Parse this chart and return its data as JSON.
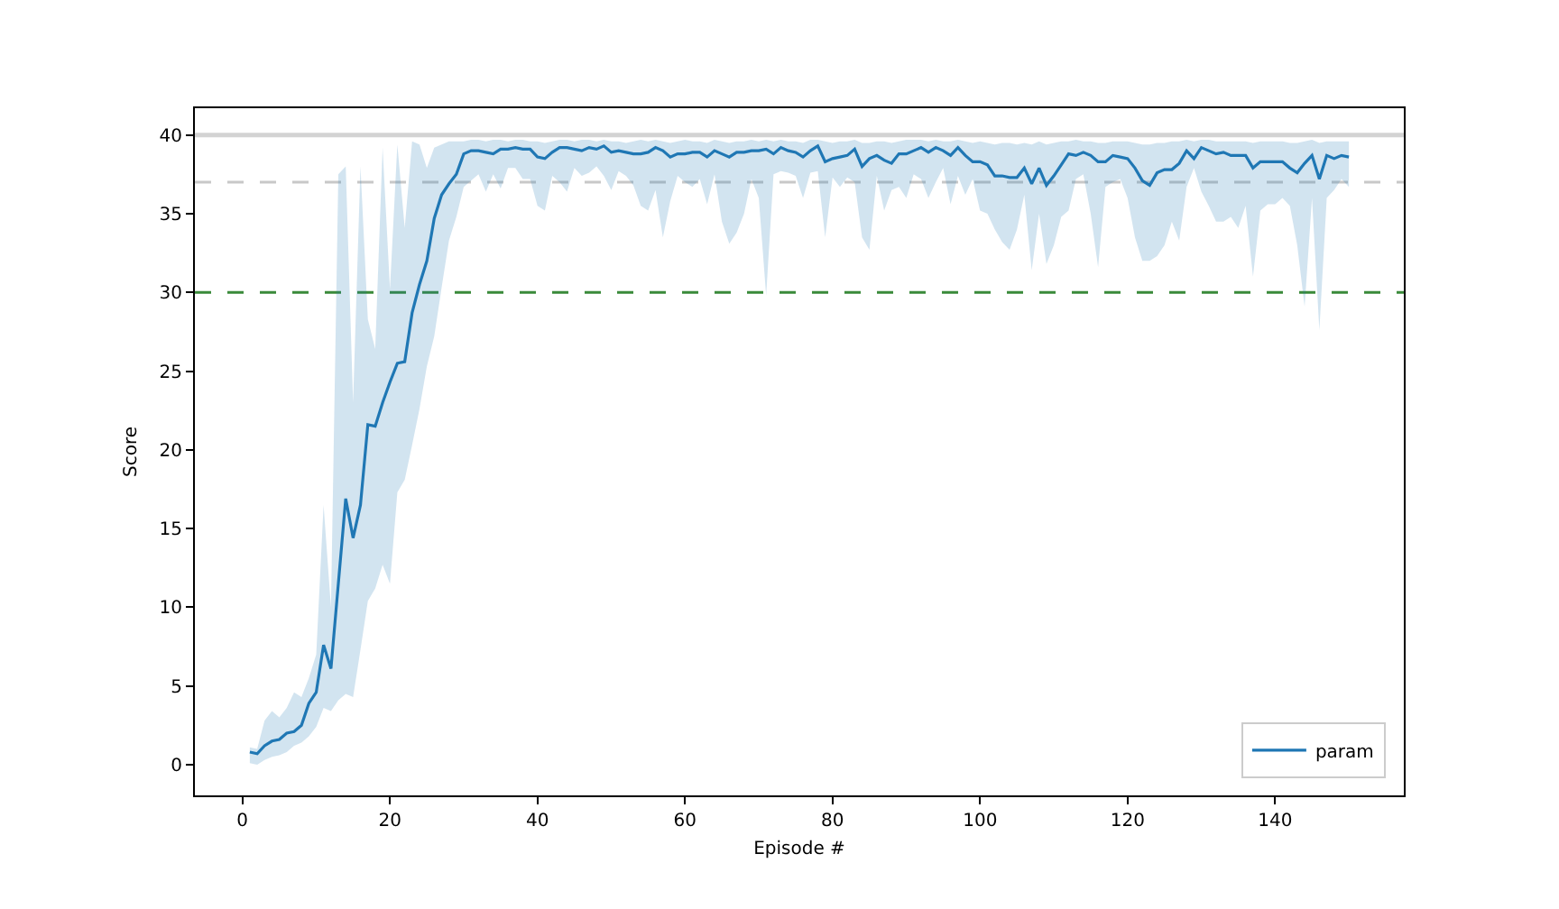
{
  "chart_data": {
    "type": "line",
    "xlabel": "Episode #",
    "ylabel": "Score",
    "x": [
      1,
      2,
      3,
      4,
      5,
      6,
      7,
      8,
      9,
      10,
      11,
      12,
      13,
      14,
      15,
      16,
      17,
      18,
      19,
      20,
      21,
      22,
      23,
      24,
      25,
      26,
      27,
      28,
      29,
      30,
      31,
      32,
      33,
      34,
      35,
      36,
      37,
      38,
      39,
      40,
      41,
      42,
      43,
      44,
      45,
      46,
      47,
      48,
      49,
      50,
      51,
      52,
      53,
      54,
      55,
      56,
      57,
      58,
      59,
      60,
      61,
      62,
      63,
      64,
      65,
      66,
      67,
      68,
      69,
      70,
      71,
      72,
      73,
      74,
      75,
      76,
      77,
      78,
      79,
      80,
      81,
      82,
      83,
      84,
      85,
      86,
      87,
      88,
      89,
      90,
      91,
      92,
      93,
      94,
      95,
      96,
      97,
      98,
      99,
      100,
      101,
      102,
      103,
      104,
      105,
      106,
      107,
      108,
      109,
      110,
      111,
      112,
      113,
      114,
      115,
      116,
      117,
      118,
      119,
      120,
      121,
      122,
      123,
      124,
      125,
      126,
      127,
      128,
      129,
      130,
      131,
      132,
      133,
      134,
      135,
      136,
      137,
      138,
      139,
      140,
      141,
      142,
      143,
      144,
      145,
      146,
      147,
      148,
      149,
      150
    ],
    "series": [
      {
        "name": "param",
        "color": "#1f77b4",
        "values": [
          0.8,
          0.7,
          1.2,
          1.5,
          1.6,
          2.0,
          2.1,
          2.5,
          3.9,
          4.6,
          7.6,
          6.1,
          11.5,
          16.9,
          14.4,
          16.5,
          21.6,
          21.5,
          23.0,
          24.3,
          25.5,
          25.6,
          28.7,
          30.5,
          32.0,
          34.7,
          36.2,
          36.9,
          37.5,
          38.8,
          39.0,
          39.0,
          38.9,
          38.8,
          39.1,
          39.1,
          39.2,
          39.1,
          39.1,
          38.6,
          38.5,
          38.9,
          39.2,
          39.2,
          39.1,
          39.0,
          39.2,
          39.1,
          39.3,
          38.9,
          39.0,
          38.9,
          38.8,
          38.8,
          38.9,
          39.2,
          39.0,
          38.6,
          38.8,
          38.8,
          38.9,
          38.9,
          38.6,
          39.0,
          38.8,
          38.6,
          38.9,
          38.9,
          39.0,
          39.0,
          39.1,
          38.8,
          39.2,
          39.0,
          38.9,
          38.6,
          39.0,
          39.3,
          38.3,
          38.5,
          38.6,
          38.7,
          39.1,
          38.0,
          38.5,
          38.7,
          38.4,
          38.2,
          38.8,
          38.8,
          39.0,
          39.2,
          38.9,
          39.2,
          39.0,
          38.7,
          39.2,
          38.7,
          38.3,
          38.3,
          38.1,
          37.4,
          37.4,
          37.3,
          37.3,
          37.9,
          36.9,
          37.9,
          36.8,
          37.4,
          38.1,
          38.8,
          38.7,
          38.9,
          38.7,
          38.3,
          38.3,
          38.7,
          38.6,
          38.5,
          37.9,
          37.1,
          36.8,
          37.6,
          37.8,
          37.8,
          38.2,
          39.0,
          38.5,
          39.2,
          39.0,
          38.8,
          38.9,
          38.7,
          38.7,
          38.7,
          37.9,
          38.3,
          38.3,
          38.3,
          38.3,
          37.9,
          37.6,
          38.2,
          38.7,
          37.2,
          38.7,
          38.5,
          38.7,
          38.6
        ],
        "lower": [
          0.1,
          0.0,
          0.3,
          0.5,
          0.6,
          0.8,
          1.2,
          1.4,
          1.8,
          2.4,
          3.6,
          3.4,
          4.1,
          4.5,
          4.3,
          7.3,
          10.4,
          11.2,
          12.7,
          11.5,
          17.3,
          18.1,
          20.3,
          22.6,
          25.3,
          27.2,
          30.3,
          33.3,
          34.8,
          36.7,
          37.1,
          37.5,
          36.4,
          37.5,
          36.6,
          37.9,
          37.9,
          37.2,
          37.2,
          35.5,
          35.2,
          37.4,
          37.0,
          36.4,
          37.9,
          37.4,
          37.6,
          38.0,
          37.4,
          36.5,
          37.7,
          37.4,
          36.8,
          35.5,
          35.2,
          36.5,
          33.5,
          35.8,
          37.4,
          37.0,
          36.7,
          37.2,
          35.6,
          37.5,
          34.5,
          33.1,
          33.8,
          35.0,
          37.2,
          36.0,
          29.8,
          37.5,
          37.7,
          37.6,
          37.4,
          36.0,
          37.6,
          37.7,
          33.5,
          37.3,
          36.7,
          37.3,
          37.0,
          33.5,
          32.7,
          37.4,
          35.2,
          36.5,
          36.7,
          36.0,
          37.5,
          37.2,
          36.0,
          37.0,
          37.9,
          35.6,
          37.4,
          36.2,
          37.2,
          35.2,
          35.0,
          34.0,
          33.2,
          32.7,
          34.0,
          36.2,
          31.4,
          35.0,
          31.8,
          33.0,
          34.8,
          35.2,
          37.2,
          37.5,
          35.0,
          31.6,
          36.7,
          37.0,
          37.2,
          36.0,
          33.5,
          32.0,
          32.0,
          32.3,
          33.0,
          34.5,
          33.3,
          36.7,
          37.9,
          36.4,
          35.5,
          34.5,
          34.5,
          34.8,
          34.1,
          35.5,
          31.0,
          35.2,
          35.6,
          35.6,
          36.0,
          35.5,
          33.0,
          29.1,
          36.0,
          27.6,
          36.0,
          36.5,
          37.2,
          36.7
        ],
        "upper": [
          1.1,
          1.0,
          2.8,
          3.4,
          3.0,
          3.6,
          4.6,
          4.3,
          5.5,
          7.0,
          16.5,
          10.0,
          37.5,
          38.0,
          23.0,
          38.0,
          28.3,
          26.4,
          39.2,
          30.2,
          39.4,
          34.1,
          39.6,
          39.4,
          37.9,
          39.2,
          39.4,
          39.6,
          39.6,
          39.6,
          39.7,
          39.7,
          39.6,
          39.7,
          39.7,
          39.6,
          39.7,
          39.7,
          39.6,
          39.6,
          39.5,
          39.6,
          39.7,
          39.7,
          39.6,
          39.7,
          39.7,
          39.6,
          39.7,
          39.6,
          39.6,
          39.5,
          39.6,
          39.7,
          39.6,
          39.7,
          39.6,
          39.5,
          39.6,
          39.7,
          39.6,
          39.6,
          39.5,
          39.7,
          39.6,
          39.5,
          39.6,
          39.6,
          39.7,
          39.6,
          39.7,
          39.6,
          39.7,
          39.6,
          39.6,
          39.5,
          39.7,
          39.7,
          39.6,
          39.5,
          39.6,
          39.6,
          39.7,
          39.5,
          39.5,
          39.6,
          39.6,
          39.5,
          39.6,
          39.7,
          39.7,
          39.7,
          39.6,
          39.7,
          39.6,
          39.6,
          39.7,
          39.6,
          39.5,
          39.6,
          39.5,
          39.4,
          39.5,
          39.5,
          39.4,
          39.5,
          39.4,
          39.6,
          39.4,
          39.5,
          39.6,
          39.6,
          39.7,
          39.6,
          39.6,
          39.5,
          39.5,
          39.6,
          39.6,
          39.6,
          39.5,
          39.4,
          39.4,
          39.5,
          39.5,
          39.6,
          39.6,
          39.7,
          39.6,
          39.7,
          39.7,
          39.6,
          39.6,
          39.6,
          39.6,
          39.6,
          39.5,
          39.6,
          39.6,
          39.6,
          39.6,
          39.5,
          39.5,
          39.6,
          39.7,
          39.5,
          39.6,
          39.6,
          39.6,
          39.6
        ]
      }
    ],
    "xlim": [
      -6.45,
      157.45
    ],
    "xticks": [
      0,
      20,
      40,
      60,
      80,
      100,
      120,
      140
    ],
    "ylim": [
      -1.95,
      41.7
    ],
    "yticks": [
      0,
      5,
      10,
      15,
      20,
      25,
      30,
      35,
      40
    ],
    "ref_lines": [
      {
        "axis": "y",
        "value": 40,
        "color": "#d3d3d3",
        "line_style": "solid"
      },
      {
        "axis": "y",
        "value": 37,
        "color": "#c8c8c8",
        "line_style": "dashed"
      },
      {
        "axis": "y",
        "value": 30,
        "color": "#3a8a3a",
        "line_style": "dashed"
      }
    ],
    "legend": "bottom right"
  }
}
